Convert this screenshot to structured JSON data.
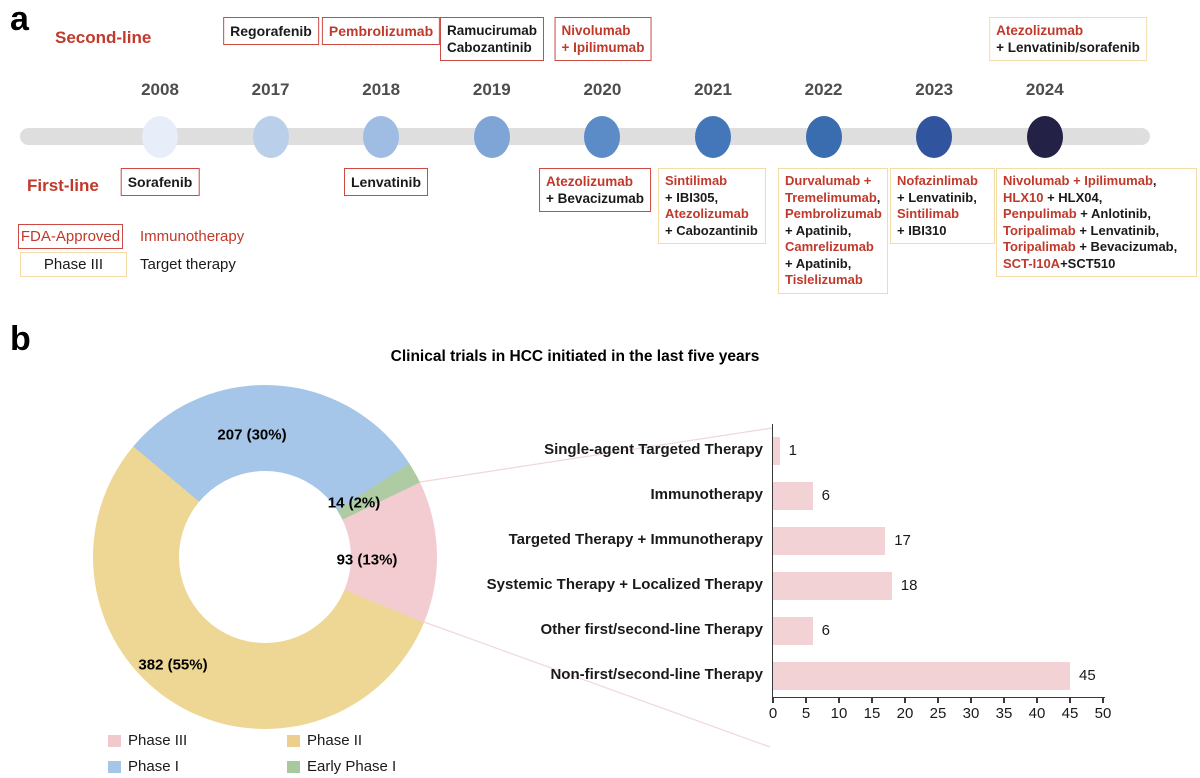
{
  "panel_a": {
    "label": "a",
    "rows": {
      "second_line": "Second-line",
      "first_line": "First-line"
    },
    "timeline_years": [
      {
        "year": "2008",
        "dot_color": "#e7eef9"
      },
      {
        "year": "2017",
        "dot_color": "#b9cfea"
      },
      {
        "year": "2018",
        "dot_color": "#9fbde3"
      },
      {
        "year": "2019",
        "dot_color": "#7fa5d6"
      },
      {
        "year": "2020",
        "dot_color": "#5c8cc7"
      },
      {
        "year": "2021",
        "dot_color": "#4377b9"
      },
      {
        "year": "2022",
        "dot_color": "#3a6cb0"
      },
      {
        "year": "2023",
        "dot_color": "#30549e"
      },
      {
        "year": "2024",
        "dot_color": "#232145"
      }
    ],
    "second_line_boxes": [
      {
        "year": "2017",
        "border": "fda",
        "lines": [
          [
            {
              "text": "Regorafenib",
              "color": "black"
            }
          ]
        ]
      },
      {
        "year": "2018",
        "border": "fda",
        "lines": [
          [
            {
              "text": "Pembrolizumab",
              "color": "red"
            }
          ]
        ]
      },
      {
        "year": "2019",
        "border": "fda",
        "lines": [
          [
            {
              "text": "Ramucirumab",
              "color": "black"
            }
          ],
          [
            {
              "text": "Cabozantinib",
              "color": "black"
            }
          ]
        ]
      },
      {
        "year": "2020",
        "border": "fda",
        "lines": [
          [
            {
              "text": "Nivolumab",
              "color": "red"
            }
          ],
          [
            {
              "text": "+ Ipilimumab",
              "color": "red"
            }
          ]
        ]
      },
      {
        "year": "2024",
        "border": "phase3",
        "lines": [
          [
            {
              "text": "Atezolizumab",
              "color": "red"
            }
          ],
          [
            {
              "text": "+ Lenvatinib/sorafenib",
              "color": "black"
            }
          ]
        ]
      }
    ],
    "first_line_boxes": [
      {
        "year": "2008",
        "border": "fda",
        "lines": [
          [
            {
              "text": "Sorafenib",
              "color": "black"
            }
          ]
        ]
      },
      {
        "year": "2018",
        "border": "fda",
        "lines": [
          [
            {
              "text": "Lenvatinib",
              "color": "black"
            }
          ]
        ]
      },
      {
        "year": "2020",
        "border": "fda",
        "lines": [
          [
            {
              "text": "Atezolizumab",
              "color": "red"
            }
          ],
          [
            {
              "text": "+ Bevacizumab",
              "color": "black"
            }
          ]
        ]
      },
      {
        "year": "2021",
        "border": "phase3",
        "lines": [
          [
            {
              "text": "Sintilimab",
              "color": "red"
            }
          ],
          [
            {
              "text": "+ IBI305,",
              "color": "black"
            }
          ],
          [
            {
              "text": "Atezolizumab",
              "color": "red"
            }
          ],
          [
            {
              "text": "+ Cabozantinib",
              "color": "black"
            }
          ]
        ]
      },
      {
        "year": "2022",
        "border": "phase3",
        "lines": [
          [
            {
              "text": "Durvalumab +",
              "color": "red"
            }
          ],
          [
            {
              "text": "Tremelimumab",
              "color": "red"
            },
            {
              "text": ",",
              "color": "black"
            }
          ],
          [
            {
              "text": "Pembrolizumab",
              "color": "red"
            }
          ],
          [
            {
              "text": "+ Apatinib,",
              "color": "black"
            }
          ],
          [
            {
              "text": "Camrelizumab",
              "color": "red"
            }
          ],
          [
            {
              "text": "+ Apatinib,",
              "color": "black"
            }
          ],
          [
            {
              "text": "Tislelizumab",
              "color": "red"
            }
          ]
        ]
      },
      {
        "year": "2023",
        "border": "phase3",
        "lines": [
          [
            {
              "text": "Nofazinlimab",
              "color": "red"
            }
          ],
          [
            {
              "text": "+ Lenvatinib,",
              "color": "black"
            }
          ],
          [
            {
              "text": "Sintilimab",
              "color": "red"
            }
          ],
          [
            {
              "text": "+ IBI310",
              "color": "black"
            }
          ]
        ]
      },
      {
        "year": "2024",
        "border": "phase3",
        "lines": [
          [
            {
              "text": "Nivolumab + Ipilimumab",
              "color": "red"
            },
            {
              "text": ",",
              "color": "black"
            }
          ],
          [
            {
              "text": "HLX10",
              "color": "red"
            },
            {
              "text": " + HLX04,",
              "color": "black"
            }
          ],
          [
            {
              "text": "Penpulimab",
              "color": "red"
            },
            {
              "text": " + Anlotinib,",
              "color": "black"
            }
          ],
          [
            {
              "text": "Toripalimab",
              "color": "red"
            },
            {
              "text": " + Lenvatinib,",
              "color": "black"
            }
          ],
          [
            {
              "text": "Toripalimab",
              "color": "red"
            },
            {
              "text": " + Bevacizumab,",
              "color": "black"
            }
          ],
          [
            {
              "text": "SCT-I10A",
              "color": "red"
            },
            {
              "text": "+SCT510",
              "color": "black"
            }
          ]
        ]
      }
    ],
    "legend": {
      "fda_approved": "FDA-Approved",
      "phase_iii": "Phase III",
      "immunotherapy": "Immunotherapy",
      "target_therapy": "Target therapy"
    },
    "colors": {
      "red_text": "#c0392b",
      "fda_border": "#cb4a43",
      "phase3_border": "#f3dca8",
      "timeline_bar": "#dedede",
      "year_label": "#4d4d4d"
    }
  },
  "panel_b": {
    "label": "b"
  },
  "chart_data": [
    {
      "type": "pie",
      "donut": true,
      "title": "Clinical trials in HCC initiated in the last five years",
      "start_angle_deg": -50,
      "slices": [
        {
          "label": "Phase I",
          "value": 207,
          "display": "207 (30%)",
          "color": "#a5c6e8"
        },
        {
          "label": "Early Phase I",
          "value": 14,
          "display": "14 (2%)",
          "color": "#aecba4"
        },
        {
          "label": "Phase III",
          "value": 93,
          "display": "93 (13%)",
          "color": "#f2ccd1"
        },
        {
          "label": "Phase II",
          "value": 382,
          "display": "382 (55%)",
          "color": "#eed795"
        }
      ],
      "legend": [
        {
          "label": "Phase III",
          "color": "#f0c9cd"
        },
        {
          "label": "Phase II",
          "color": "#ecce8f"
        },
        {
          "label": "Phase I",
          "color": "#a5c6e8"
        },
        {
          "label": "Early Phase I",
          "color": "#a8c9a0"
        }
      ],
      "legend_position": "bottom-left"
    },
    {
      "type": "bar",
      "orientation": "horizontal",
      "categories": [
        "Single-agent Targeted Therapy",
        "Immunotherapy",
        "Targeted Therapy + Immunotherapy",
        "Systemic Therapy + Localized Therapy",
        "Other first/second-line Therapy",
        "Non-first/second-line Therapy"
      ],
      "values": [
        1,
        6,
        17,
        18,
        6,
        45
      ],
      "xlim": [
        0,
        50
      ],
      "xticks": [
        0,
        5,
        10,
        15,
        20,
        25,
        30,
        35,
        40,
        45,
        50
      ],
      "bar_color": "#f2d2d4",
      "grid": false
    }
  ]
}
